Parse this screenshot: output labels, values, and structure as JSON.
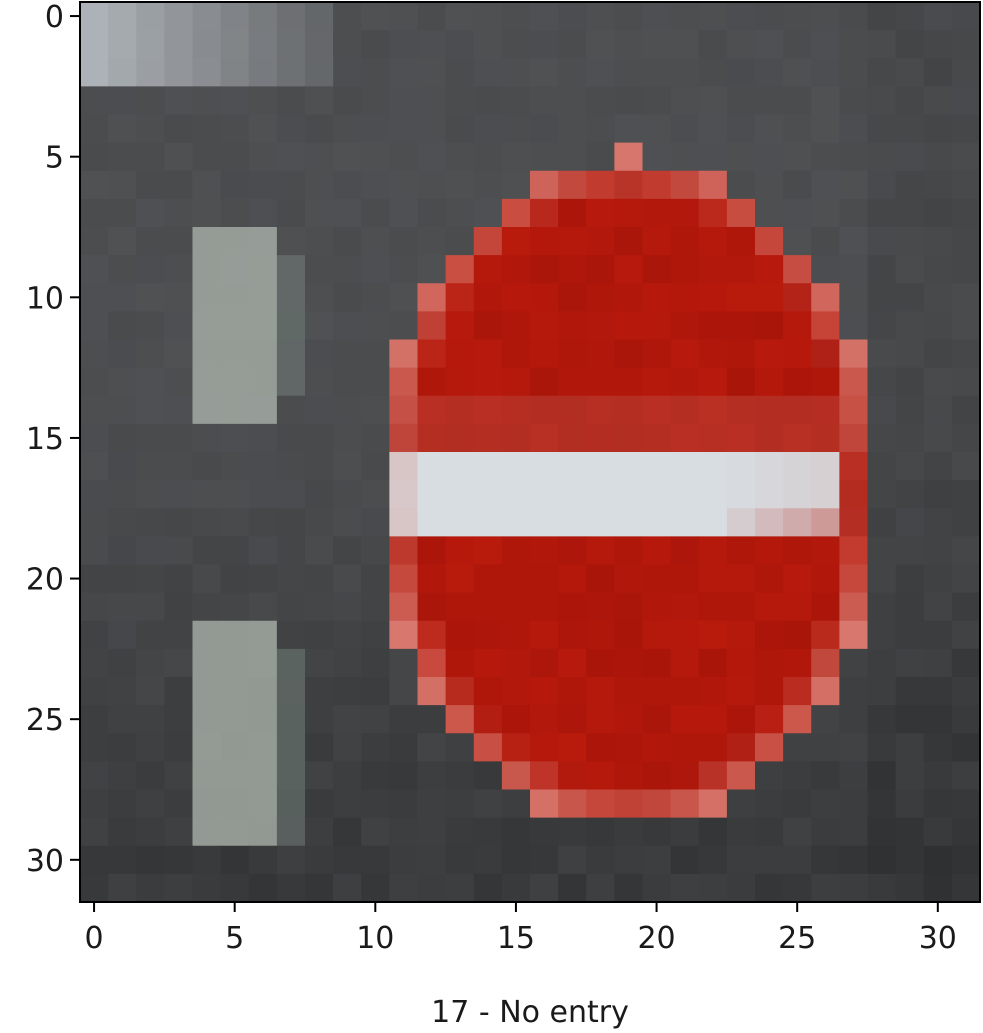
{
  "chart_data": {
    "type": "heatmap",
    "title": "",
    "xlabel": "17 - No entry",
    "ylabel": "",
    "xlim": [
      -0.5,
      31.5
    ],
    "ylim": [
      31.5,
      -0.5
    ],
    "x_ticks": [
      0,
      5,
      10,
      15,
      20,
      25,
      30
    ],
    "y_ticks": [
      0,
      5,
      10,
      15,
      20,
      25,
      30
    ],
    "x_tick_labels": [
      "0",
      "5",
      "10",
      "15",
      "20",
      "25",
      "30"
    ],
    "y_tick_labels": [
      "0",
      "5",
      "10",
      "15",
      "20",
      "25",
      "30"
    ],
    "grid": false,
    "image_size": [
      32,
      32
    ],
    "image_content": "pixelated photo of a no-entry traffic sign: red disc with a horizontal white bar on a grey background",
    "colors": {
      "sign_red": "#b81a0c",
      "sign_red_dark": "#a01208",
      "bar_white": "#d8dde2",
      "rim": "#d87a70",
      "background_grey": "#4a4b4d",
      "background_dark": "#2e2f30",
      "post_light": "#a8b0a8"
    }
  }
}
